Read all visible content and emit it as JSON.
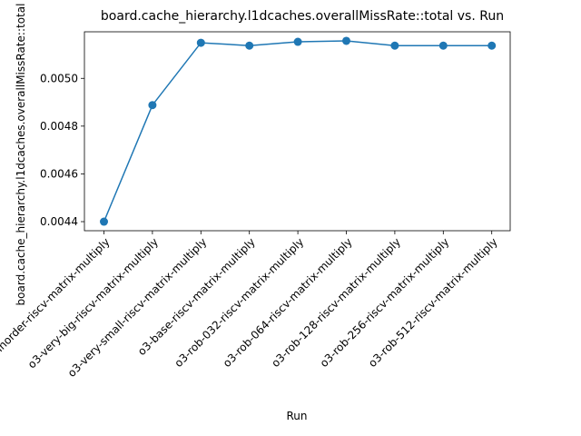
{
  "chart_data": {
    "type": "line",
    "title": "board.cache_hierarchy.l1dcaches.overallMissRate::total vs. Run",
    "xlabel": "Run",
    "ylabel": "board.cache_hierarchy.l1dcaches.overallMissRate::total",
    "categories": [
      "inorder-riscv-matrix-multiply",
      "o3-very-big-riscv-matrix-multiply",
      "o3-very-small-riscv-matrix-multiply",
      "o3-base-riscv-matrix-multiply",
      "o3-rob-032-riscv-matrix-multiply",
      "o3-rob-064-riscv-matrix-multiply",
      "o3-rob-128-riscv-matrix-multiply",
      "o3-rob-256-riscv-matrix-multiply",
      "o3-rob-512-riscv-matrix-multiply"
    ],
    "series": [
      {
        "values": [
          0.0044,
          0.004888,
          0.005149,
          0.005137,
          0.005153,
          0.005157,
          0.005137,
          0.005137,
          0.005137
        ]
      }
    ],
    "yticks": [
      "0.0044",
      "0.0046",
      "0.0048",
      "0.0050"
    ],
    "ytick_values": [
      0.0044,
      0.0046,
      0.0048,
      0.005
    ],
    "ylim": [
      0.004362,
      0.005195
    ],
    "grid": false,
    "legend": "none",
    "line_color": "#1f77b4",
    "marker": "circle"
  }
}
